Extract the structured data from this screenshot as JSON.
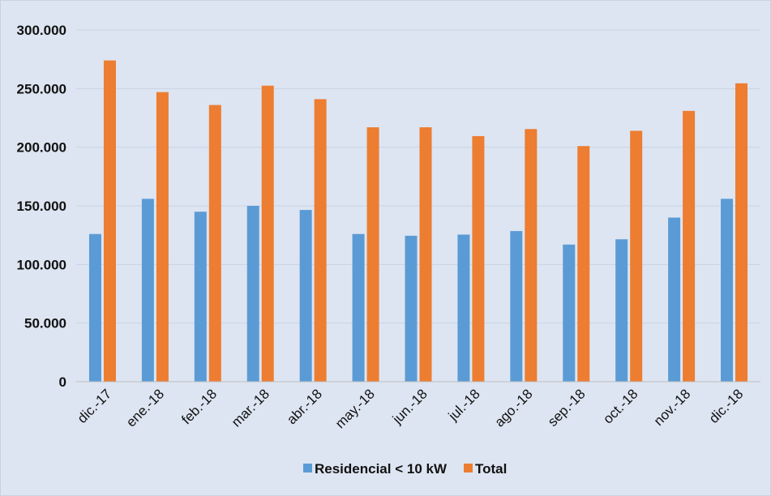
{
  "chart_data": {
    "type": "bar",
    "categories": [
      "dic.-17",
      "ene.-18",
      "feb.-18",
      "mar.-18",
      "abr.-18",
      "may.-18",
      "jun.-18",
      "jul.-18",
      "ago.-18",
      "sep.-18",
      "oct.-18",
      "nov.-18",
      "dic.-18"
    ],
    "series": [
      {
        "name": "Residencial < 10 kW",
        "color": "#5b9bd5",
        "values": [
          126000,
          156000,
          145000,
          150000,
          146500,
          126000,
          124500,
          125500,
          128500,
          117000,
          121500,
          140000,
          156000
        ]
      },
      {
        "name": "Total",
        "color": "#ed7d31",
        "values": [
          274000,
          247000,
          236000,
          252500,
          241000,
          217000,
          217000,
          209500,
          215500,
          201000,
          214000,
          231000,
          254500
        ]
      }
    ],
    "ylim": [
      0,
      300000
    ],
    "yticks": [
      0,
      50000,
      100000,
      150000,
      200000,
      250000,
      300000
    ],
    "ytick_labels": [
      "0",
      "50.000",
      "100.000",
      "150.000",
      "200.000",
      "250.000",
      "300.000"
    ],
    "title": "",
    "xlabel": "",
    "ylabel": "",
    "grid": true,
    "legend_position": "bottom"
  }
}
